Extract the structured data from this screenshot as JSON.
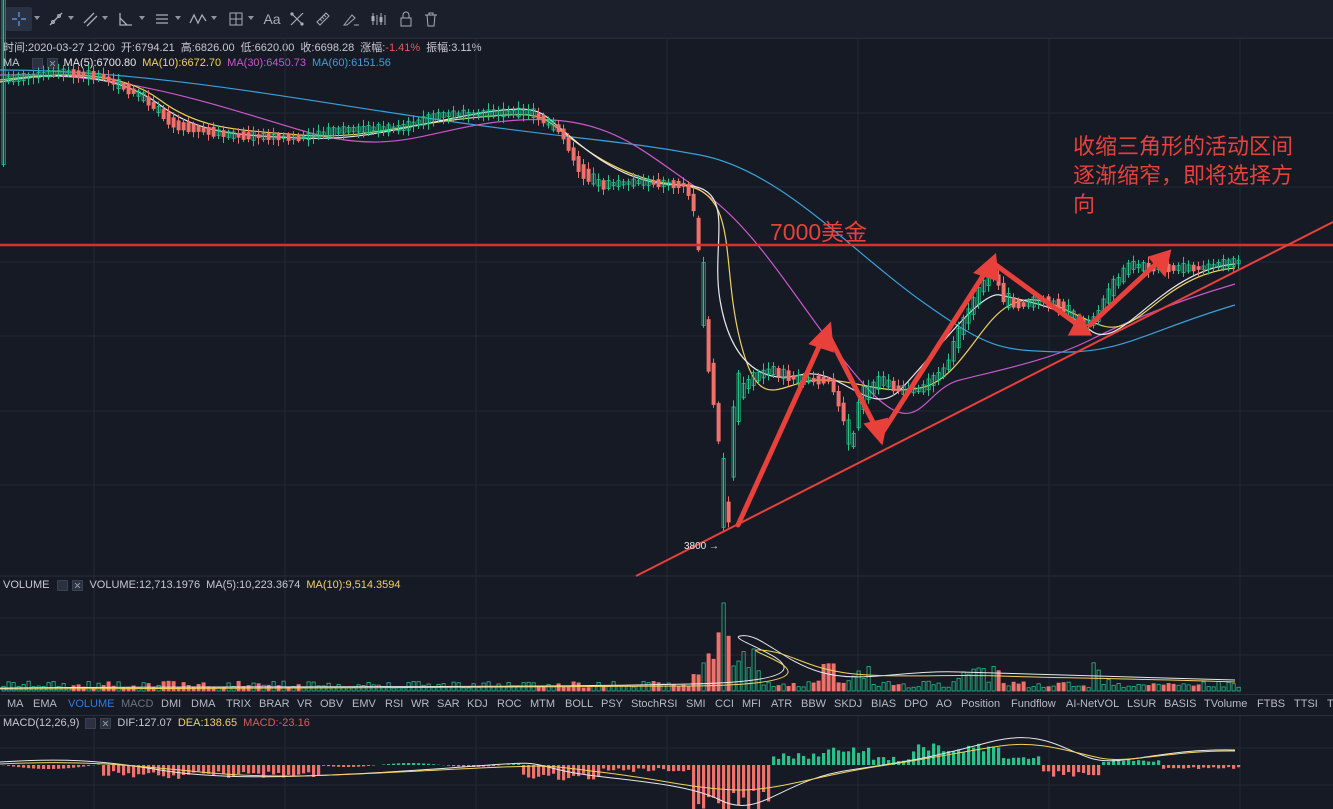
{
  "toolbar": {
    "tools": [
      "crosshair-icon",
      "trend-line-icon",
      "fib-icon",
      "angle-icon",
      "lines-icon",
      "wave-icon",
      "measure-icon",
      "text-tool-icon",
      "pattern-icon",
      "ruler-icon",
      "brush-icon",
      "settings-icon",
      "lock-icon",
      "trash-icon"
    ],
    "text_tool_label": "Aa"
  },
  "info": {
    "time": "时间:2020-03-27 12:00",
    "open": "开:6794.21",
    "high": "高:6826.00",
    "low": "低:6620.00",
    "close": "收:6698.28",
    "change_label": "涨幅:",
    "change_value": "-1.41%",
    "amplitude": "振幅:3.11%"
  },
  "ma": {
    "label": "MA",
    "ma5": "MA(5):6700.80",
    "ma10": "MA(10):6672.70",
    "ma30": "MA(30):6450.73",
    "ma60": "MA(60):6151.56",
    "colors": {
      "ma5": "#e8e8ea",
      "ma10": "#f1d35a",
      "ma30": "#c858c8",
      "ma60": "#3aa0d8"
    }
  },
  "volume": {
    "label": "VOLUME",
    "vol": "VOLUME:12,713.1976",
    "ma5": "MA(5):10,223.3674",
    "ma10": "MA(10):9,514.3594"
  },
  "macd": {
    "label": "MACD(12,26,9)",
    "dif": "DIF:127.07",
    "dea": "DEA:138.65",
    "macd": "MACD:-23.16"
  },
  "annotations": {
    "price_line_label": "7000美金",
    "note_line1": "收缩三角形的活动区间",
    "note_line2": "逐渐缩窄，即将选择方",
    "note_line3": "向",
    "low_marker": "3800 →"
  },
  "colors": {
    "up": "#26c28c",
    "down": "#f0706a",
    "annotation": "#e8403a",
    "background": "#161a25"
  },
  "indicator_tabs": [
    "MA",
    "EMA",
    "VOLUME",
    "MACD",
    "DMI",
    "DMA",
    "TRIX",
    "BRAR",
    "VR",
    "OBV",
    "EMV",
    "RSI",
    "WR",
    "SAR",
    "KDJ",
    "ROC",
    "MTM",
    "BOLL",
    "PSY",
    "StochRSI",
    "SMI",
    "CCI",
    "MFI",
    "ATR",
    "BBW",
    "SKDJ",
    "BIAS",
    "DPO",
    "AO",
    "Position",
    "Fundflow",
    "AI-NetVOL",
    "LSUR",
    "BASIS",
    "TVolume",
    "FTBS",
    "TTSI",
    "T"
  ],
  "active_tab": "VOLUME",
  "dim_tab": "MACD"
}
